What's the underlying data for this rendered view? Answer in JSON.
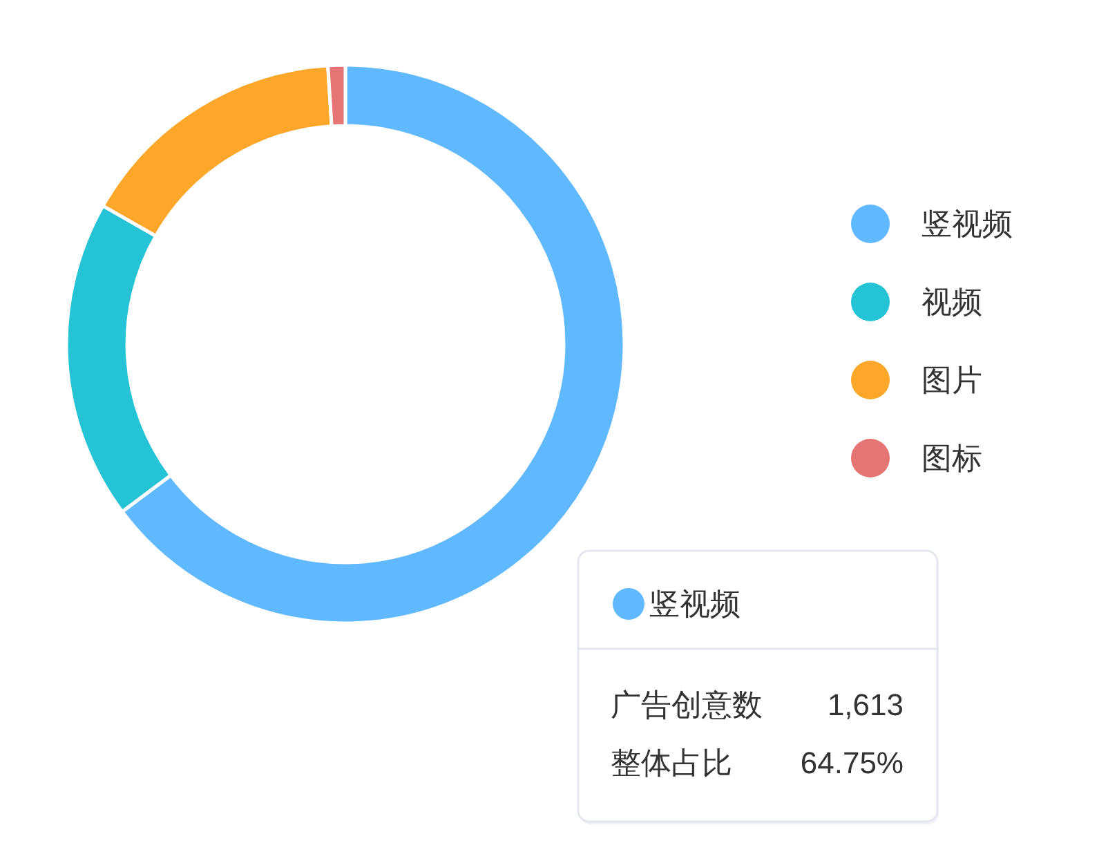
{
  "chart_data": {
    "type": "donut",
    "categories": [
      "竖视频",
      "视频",
      "图片",
      "图标"
    ],
    "values": [
      64.75,
      18.5,
      15.75,
      1.0
    ],
    "colors": [
      "#60b9ff",
      "#24c3d5",
      "#fca62a",
      "#e57574"
    ],
    "legend": "right",
    "annotations": [
      "竖视频",
      "广告创意数",
      "1,613",
      "整体占比",
      "64.75%"
    ]
  }
}
